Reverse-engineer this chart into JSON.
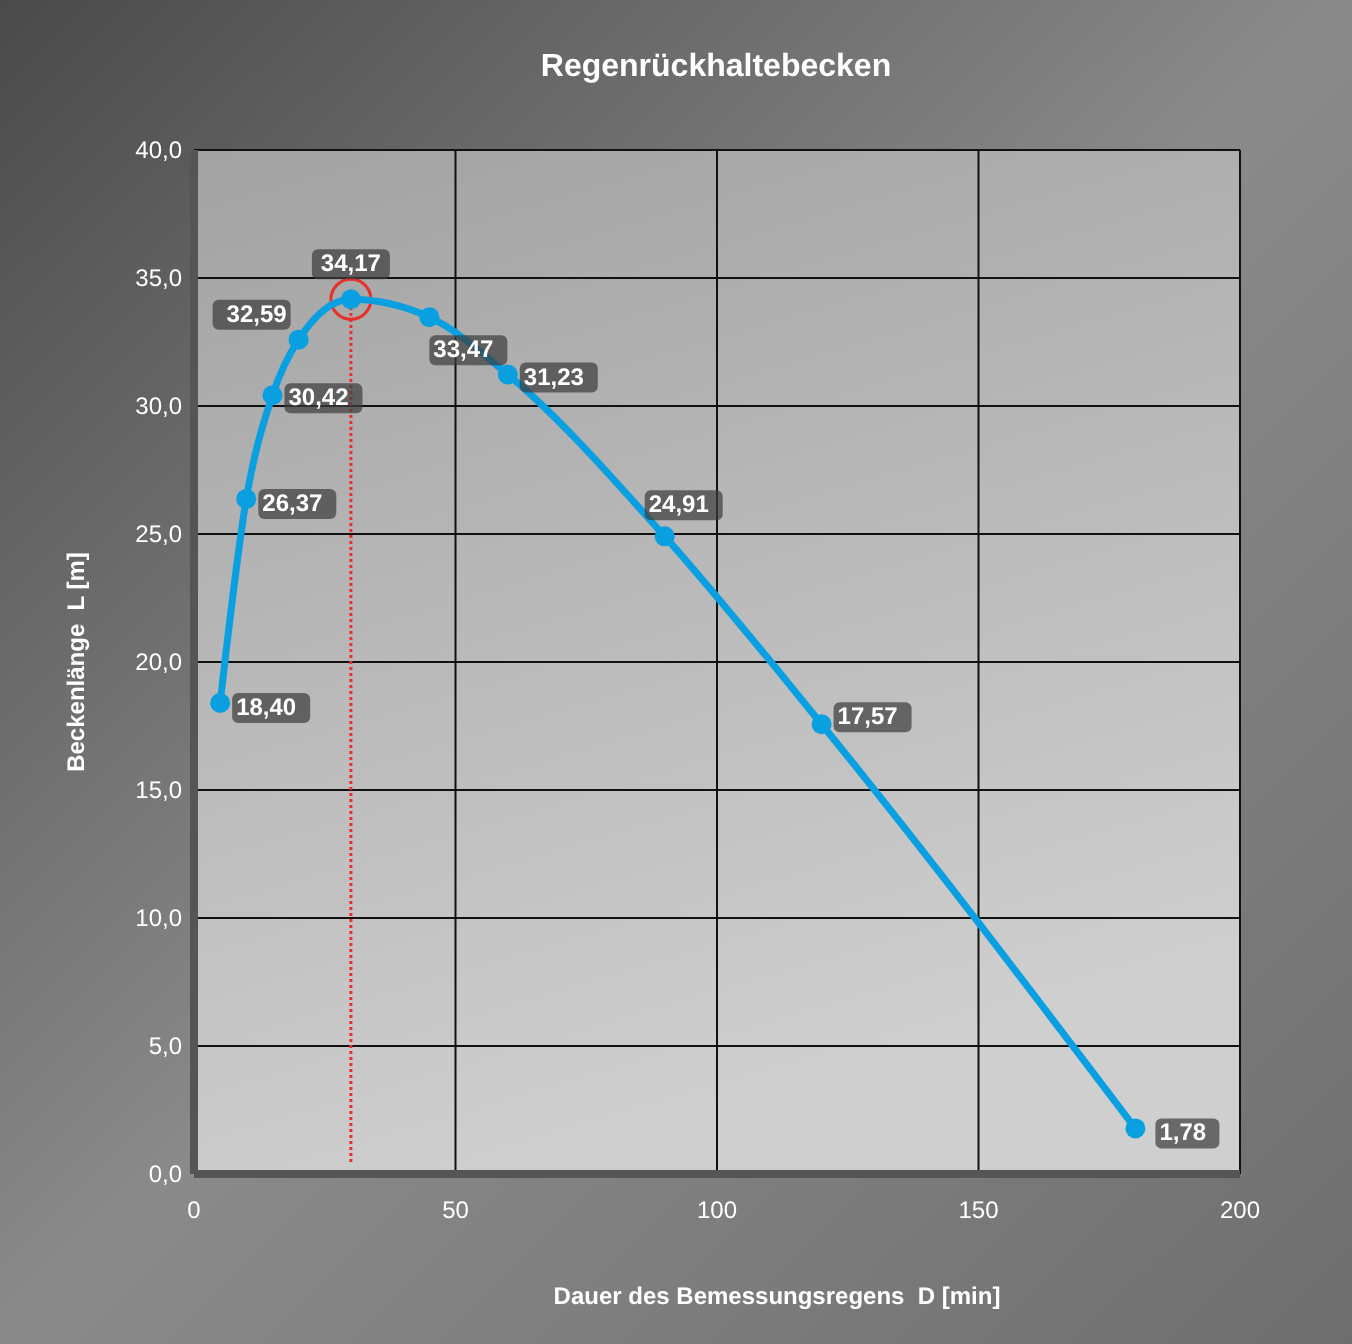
{
  "chart_data": {
    "type": "line",
    "title": "Regenrückhaltebecken",
    "xlabel": "Dauer des Bemessungsregens  D [min]",
    "ylabel": "Beckenlänge  L [m]",
    "x": [
      5,
      10,
      15,
      20,
      30,
      45,
      60,
      90,
      120,
      180
    ],
    "series": [
      {
        "color": "#0a9fe0",
        "values": [
          18.4,
          26.37,
          30.42,
          32.59,
          34.17,
          33.47,
          31.23,
          24.91,
          17.57,
          1.78
        ],
        "value_labels": [
          "18,40",
          "26,37",
          "30,42",
          "32,59",
          "34,17",
          "33,47",
          "31,23",
          "24,91",
          "17,57",
          "1,78"
        ]
      }
    ],
    "xlim": [
      0,
      200
    ],
    "xticks": [
      0,
      50,
      100,
      150,
      200
    ],
    "ylim": [
      0,
      40
    ],
    "yticks": [
      {
        "value": 0,
        "label": "0,0"
      },
      {
        "value": 5,
        "label": "5,0"
      },
      {
        "value": 10,
        "label": "10,0"
      },
      {
        "value": 15,
        "label": "15,0"
      },
      {
        "value": 20,
        "label": "20,0"
      },
      {
        "value": 25,
        "label": "25,0"
      },
      {
        "value": 30,
        "label": "30,0"
      },
      {
        "value": 35,
        "label": "35,0"
      },
      {
        "value": 40,
        "label": "40,0"
      }
    ],
    "grid": true,
    "marker": "circle",
    "line_style": "solid",
    "ref_lines": [
      {
        "axis": "x",
        "value": 30,
        "color": "#e8302a",
        "line_style": "dotted"
      }
    ]
  }
}
